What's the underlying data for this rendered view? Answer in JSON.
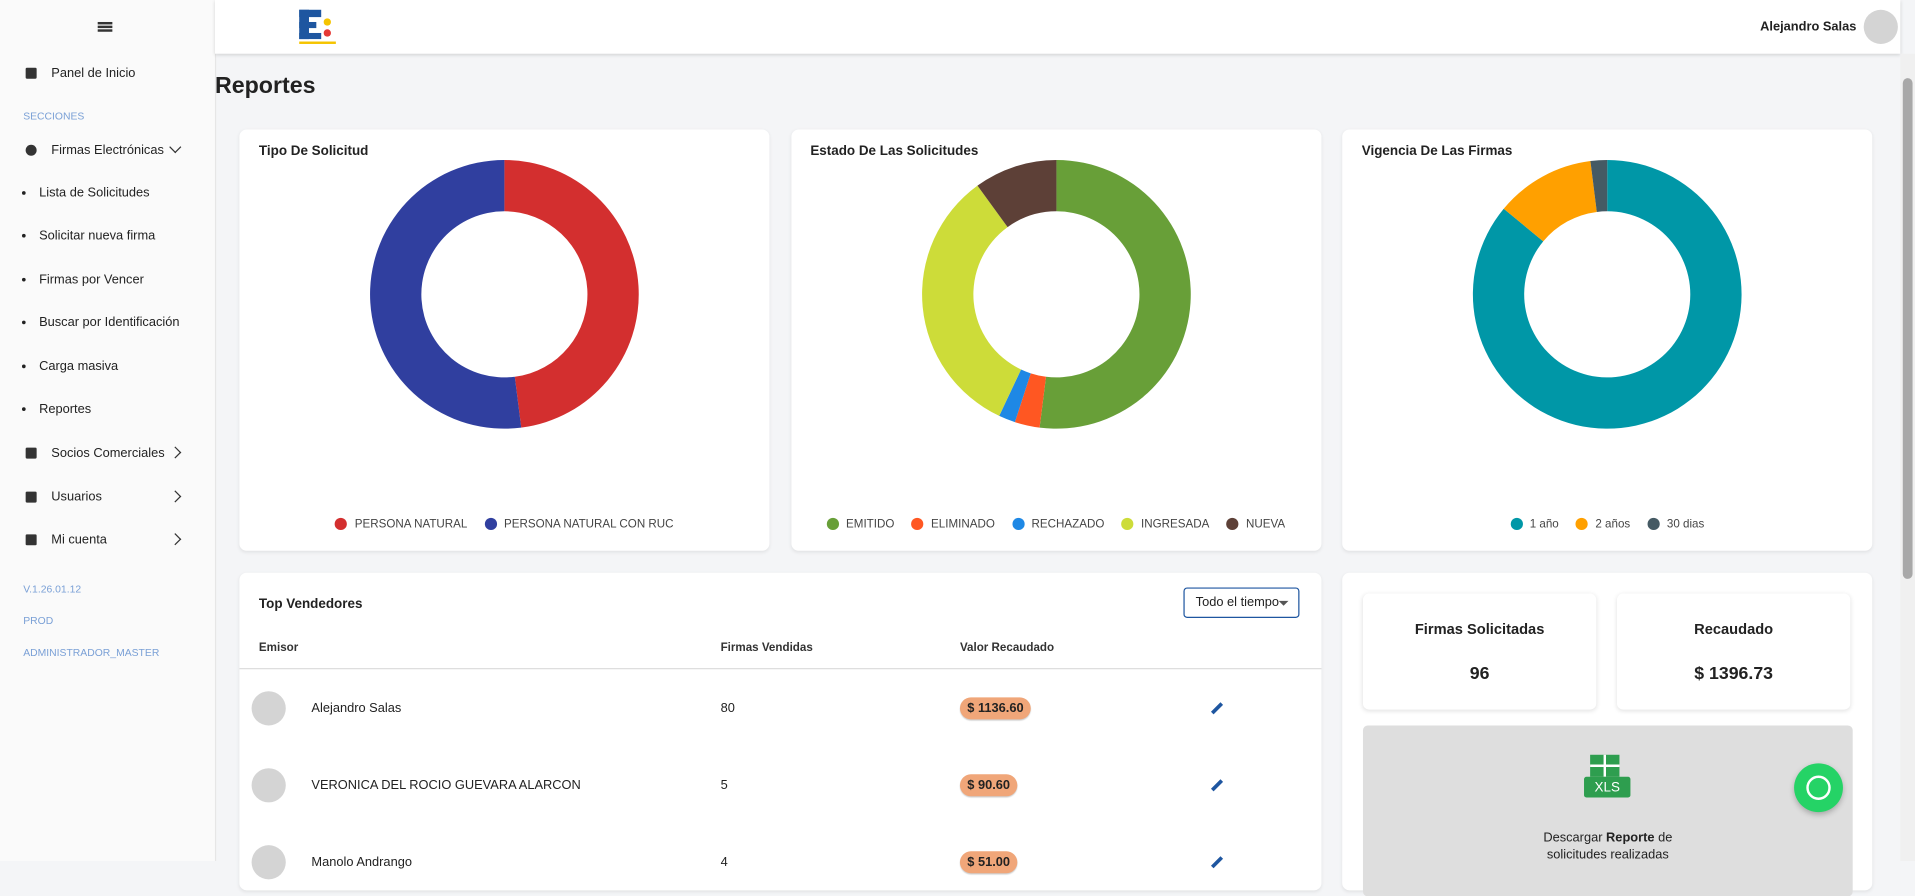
{
  "header": {
    "user": "Alejandro Salas"
  },
  "sidebar": {
    "home": "Panel de Inicio",
    "section": "SECCIONES",
    "group": "Firmas Electrónicas",
    "subitems": [
      "Lista de Solicitudes",
      "Solicitar nueva firma",
      "Firmas por Vencer",
      "Buscar por Identificación",
      "Carga masiva",
      "Reportes"
    ],
    "items": [
      "Socios Comerciales",
      "Usuarios",
      "Mi cuenta"
    ],
    "version": "V.1.26.01.12",
    "env": "PROD",
    "role": "ADMINISTRADOR_MASTER"
  },
  "page_title": "Reportes",
  "chart_data": [
    {
      "type": "donut",
      "title": "Tipo De Solicitud",
      "categories": [
        "PERSONA NATURAL",
        "PERSONA NATURAL CON RUC"
      ],
      "values": [
        48,
        52
      ],
      "colors": [
        "#d32f2f",
        "#303f9f"
      ]
    },
    {
      "type": "donut",
      "title": "Estado De Las Solicitudes",
      "categories": [
        "EMITIDO",
        "ELIMINADO",
        "RECHAZADO",
        "INGRESADA",
        "NUEVA"
      ],
      "values": [
        52,
        3,
        2,
        33,
        10
      ],
      "colors": [
        "#689f38",
        "#ff5722",
        "#1e88e5",
        "#cddc39",
        "#5d4037"
      ]
    },
    {
      "type": "donut",
      "title": "Vigencia De Las Firmas",
      "categories": [
        "1 año",
        "2 años",
        "30 dias"
      ],
      "values": [
        86,
        12,
        2
      ],
      "colors": [
        "#0097a7",
        "#ffa000",
        "#455a64"
      ]
    }
  ],
  "top_sellers": {
    "title": "Top Vendedores",
    "filter": "Todo el tiempo",
    "columns": [
      "Emisor",
      "Firmas Vendidas",
      "Valor Recaudado"
    ],
    "rows": [
      [
        "Alejandro Salas",
        "80",
        "$ 1136.60"
      ],
      [
        "VERONICA DEL ROCIO GUEVARA ALARCON",
        "5",
        "$ 90.60"
      ],
      [
        "Manolo Andrango",
        "4",
        "$ 51.00"
      ]
    ]
  },
  "stats": [
    {
      "label": "Firmas Solicitadas",
      "value": "96"
    },
    {
      "label": "Recaudado",
      "value": "$ 1396.73"
    }
  ],
  "download": {
    "before": "Descargar ",
    "bold": "Reporte",
    "after": " de solicitudes realizadas",
    "icon": "XLS"
  }
}
